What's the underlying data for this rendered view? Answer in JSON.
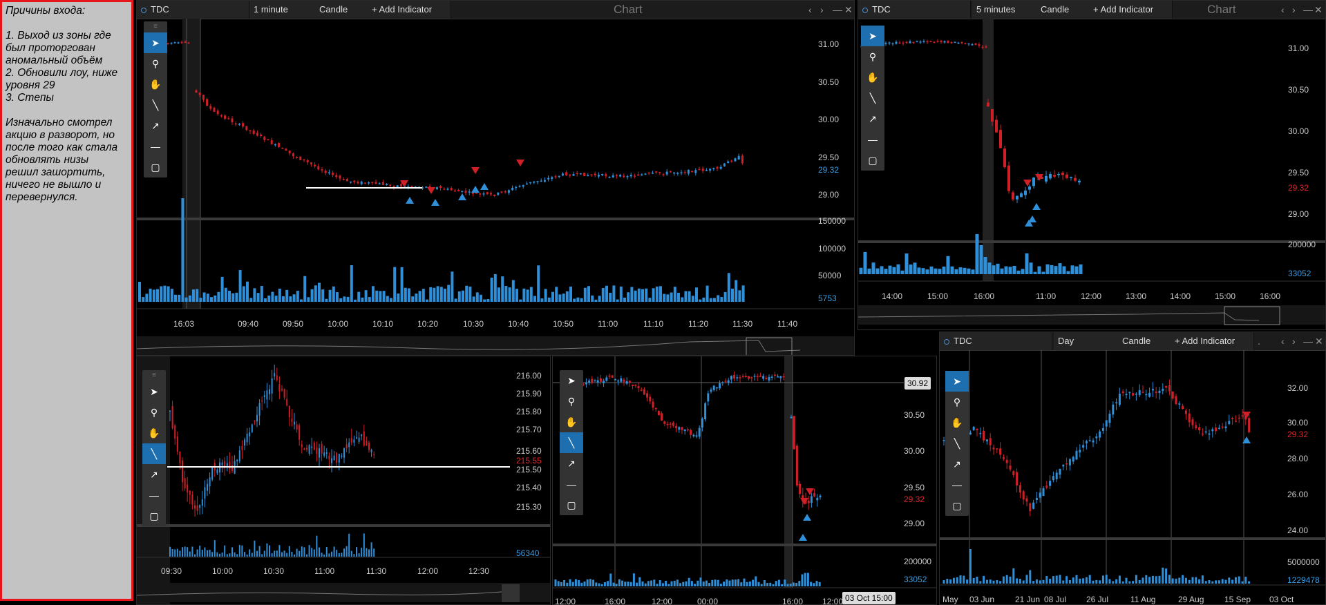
{
  "note": {
    "title": "Причины входа:",
    "lines": [
      "1. Выход из зоны где",
      "был проторгован",
      "аномальный объём",
      "2. Обновили лоу, ниже",
      "уровня 29",
      "3. Степы"
    ],
    "lines2": [
      "Изначально смотрел",
      "акцию в разворот, но",
      "после того как стала",
      "обновлять низы",
      "решил зашортить,",
      "ничего не вышло и",
      "перевернулся."
    ]
  },
  "chart1": {
    "symbol": "TDC",
    "interval": "1 minute",
    "type": "Candle",
    "add": "+ Add Indicator",
    "title": "Chart",
    "yticks": [
      "31.00",
      "30.50",
      "30.00",
      "29.50",
      "29.00"
    ],
    "last_price": "29.32",
    "vticks": [
      "150000",
      "100000",
      "50000"
    ],
    "last_vol": "5753",
    "xticks": [
      "16:03",
      "09:40",
      "09:50",
      "10:00",
      "10:10",
      "10:20",
      "10:30",
      "10:40",
      "10:50",
      "11:00",
      "11:10",
      "11:20",
      "11:30",
      "11:40"
    ]
  },
  "chart2": {
    "symbol": "TDC",
    "interval": "5 minutes",
    "type": "Candle",
    "add": "+ Add Indicator",
    "title": "Chart",
    "yticks": [
      "31.00",
      "30.50",
      "30.00",
      "29.50",
      "29.00"
    ],
    "last_price": "29.32",
    "vticks": [
      "200000"
    ],
    "last_vol": "33052",
    "xticks": [
      "14:00",
      "15:00",
      "16:00",
      "11:00",
      "12:00",
      "13:00",
      "14:00",
      "15:00",
      "16:00"
    ]
  },
  "chart3": {
    "yticks": [
      "216.00",
      "215.90",
      "215.80",
      "215.70",
      "215.60",
      "215.50",
      "215.40",
      "215.30"
    ],
    "last_price": "215.55",
    "last_vol": "56340",
    "xticks": [
      "09:30",
      "10:00",
      "10:30",
      "11:00",
      "11:30",
      "12:00",
      "12:30"
    ]
  },
  "chart4": {
    "yticks": [
      "30.50",
      "30.00",
      "29.50",
      "29.00"
    ],
    "crosshair_price": "30.92",
    "last_price": "29.32",
    "vticks": [
      "200000"
    ],
    "last_vol": "33052",
    "xticks": [
      "12:00",
      "16:00",
      "12:00",
      "00:00",
      "16:00",
      "12:00"
    ],
    "crosshair_time": "03 Oct 15:00"
  },
  "chart5": {
    "symbol": "TDC",
    "interval": "Day",
    "type": "Candle",
    "add": "+ Add Indicator",
    "yticks": [
      "32.00",
      "30.00",
      "28.00",
      "26.00",
      "24.00"
    ],
    "last_price": "29.32",
    "vticks": [
      "5000000"
    ],
    "last_vol": "1229478",
    "xticks": [
      "May",
      "03 Jun",
      "21 Jun",
      "08 Jul",
      "26 Jul",
      "11 Aug",
      "29 Aug",
      "15 Sep",
      "03 Oct"
    ]
  },
  "tools": [
    "cursor-icon",
    "zoom-icon",
    "hand-icon",
    "line-icon",
    "arrow-icon",
    "hline-icon",
    "rect-icon"
  ],
  "window_controls": {
    "dot": ".",
    "prev": "‹",
    "next": "›",
    "min": "—",
    "close": "✕"
  },
  "colors": {
    "up": "#2f8fd8",
    "down": "#d02027",
    "bg": "#000000",
    "note_border": "#e8161b"
  }
}
